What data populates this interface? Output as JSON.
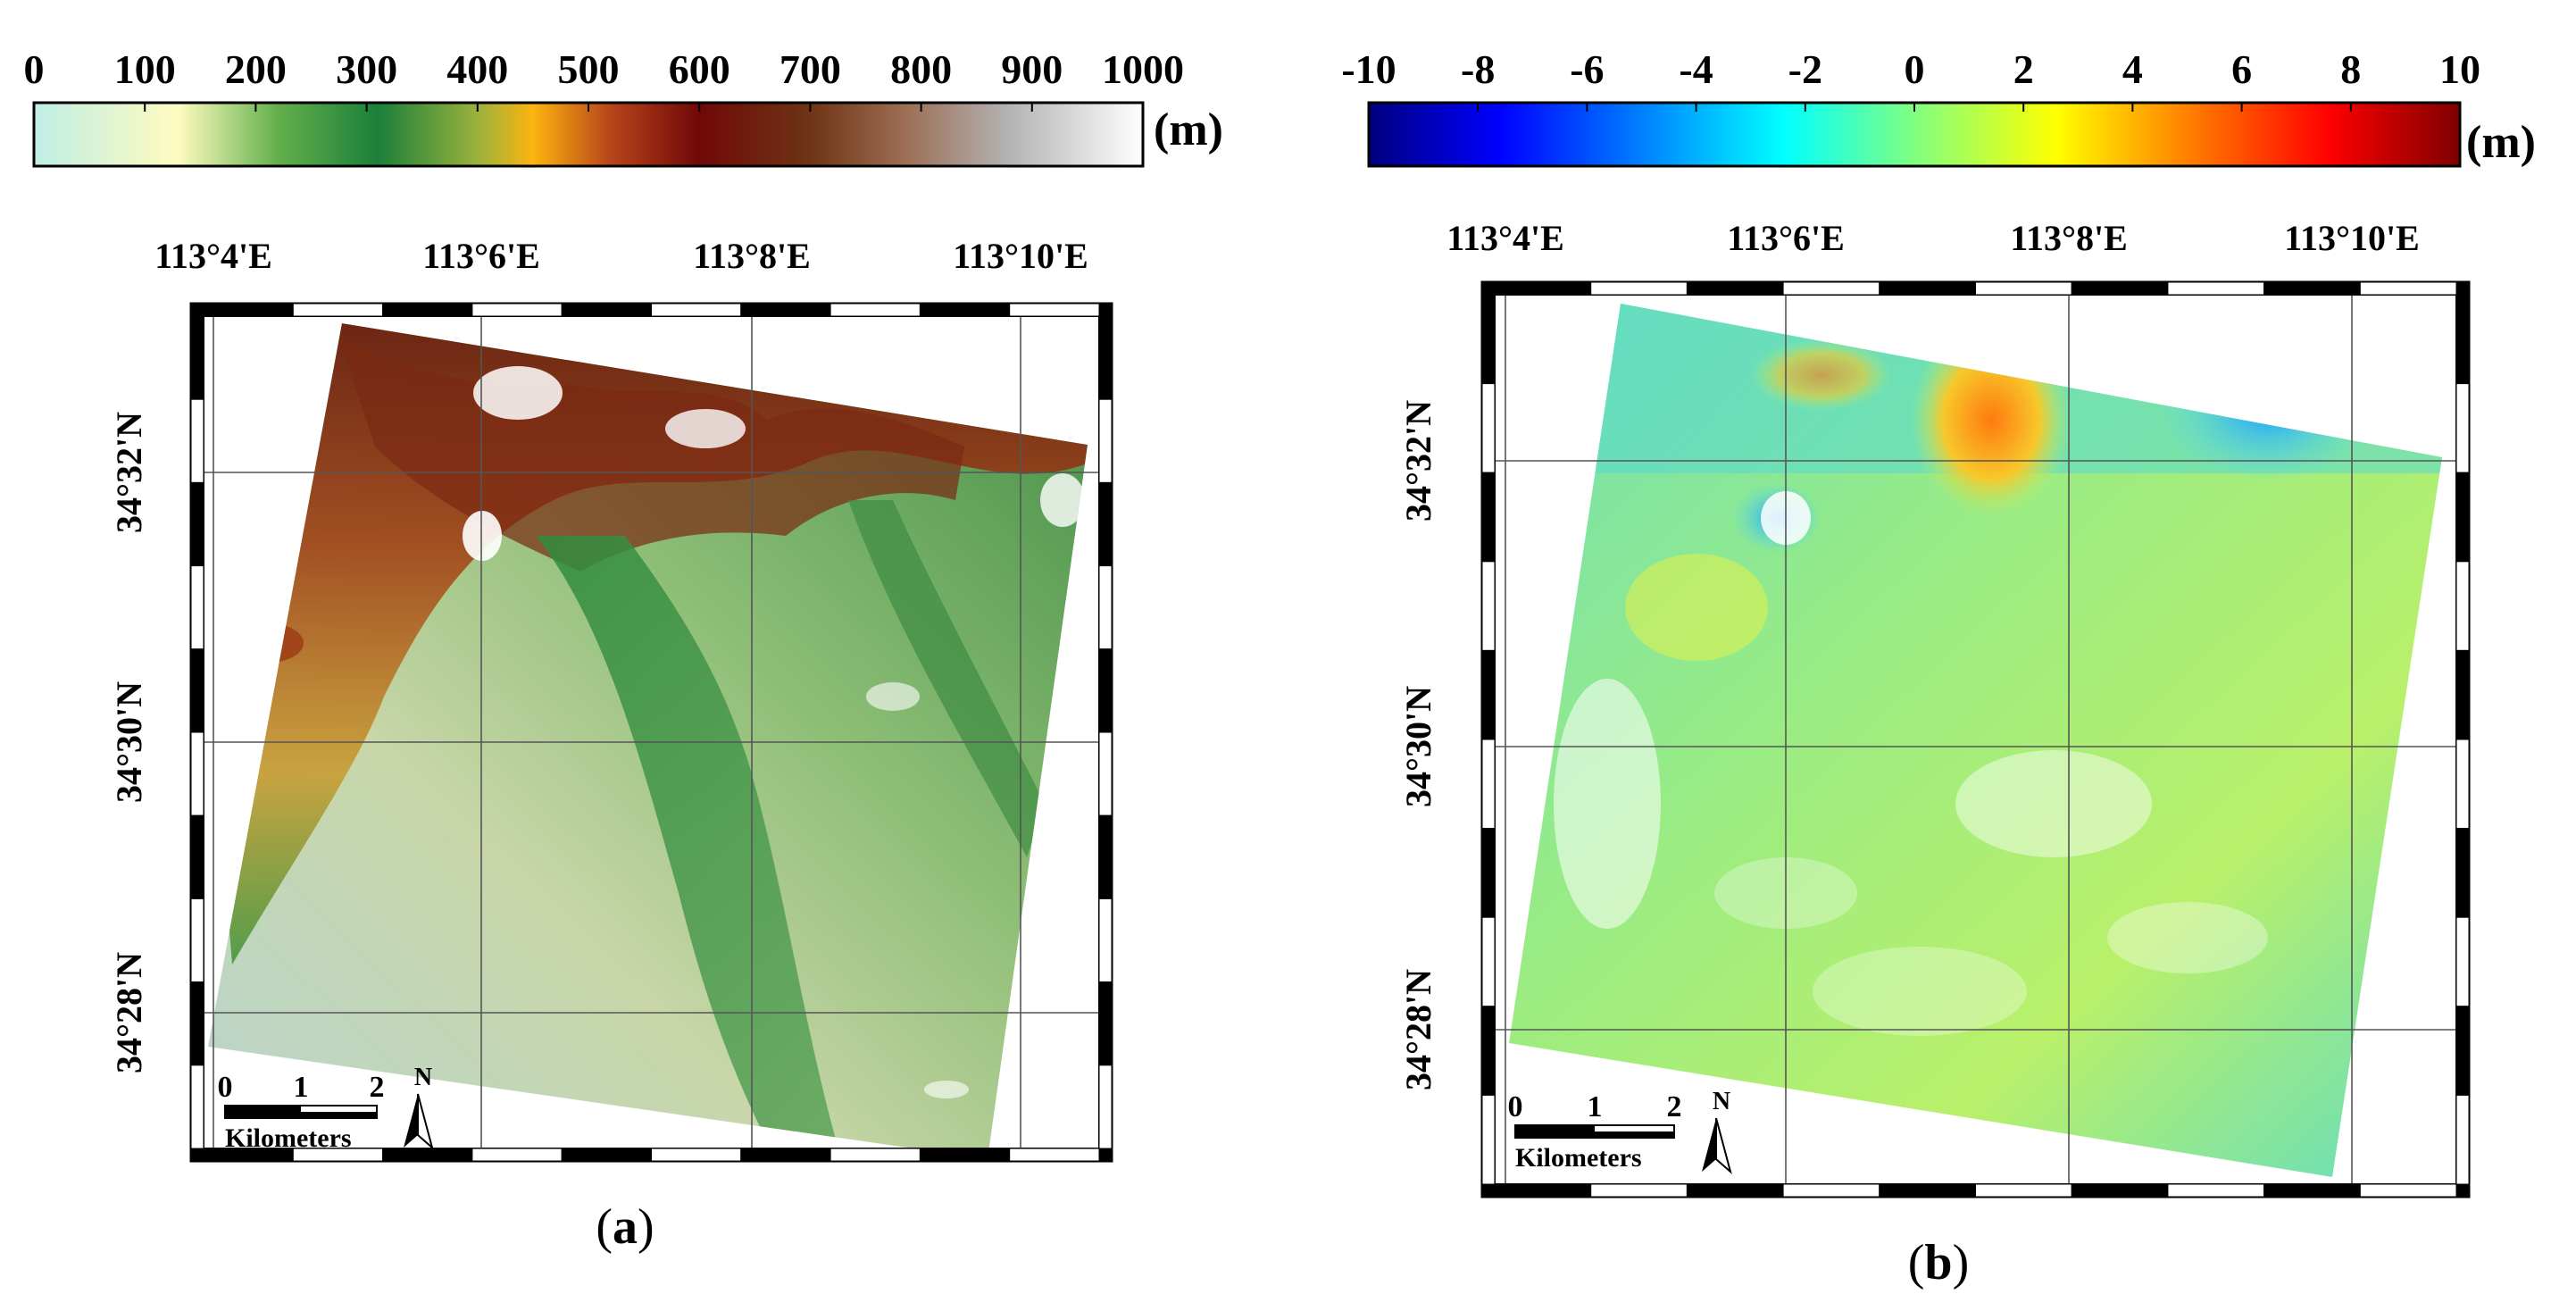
{
  "panels": [
    {
      "id": "a",
      "caption_open": "(",
      "caption_letter": "a",
      "caption_close": ")",
      "colorbar": {
        "unit": "(m)",
        "ticks": [
          "0",
          "100",
          "200",
          "300",
          "400",
          "500",
          "600",
          "700",
          "800",
          "900",
          "1000"
        ],
        "stops": [
          {
            "offset": 0.0,
            "color": "#bfeee6"
          },
          {
            "offset": 0.13,
            "color": "#fffbc0"
          },
          {
            "offset": 0.22,
            "color": "#63b04b"
          },
          {
            "offset": 0.31,
            "color": "#1b7f3a"
          },
          {
            "offset": 0.4,
            "color": "#9ab23d"
          },
          {
            "offset": 0.45,
            "color": "#fcb410"
          },
          {
            "offset": 0.52,
            "color": "#b8441a"
          },
          {
            "offset": 0.6,
            "color": "#700808"
          },
          {
            "offset": 0.7,
            "color": "#6e3415"
          },
          {
            "offset": 0.78,
            "color": "#9b6a50"
          },
          {
            "offset": 0.88,
            "color": "#b4b4b4"
          },
          {
            "offset": 1.0,
            "color": "#ffffff"
          }
        ]
      },
      "lon_labels": [
        "113°4'E",
        "113°6'E",
        "113°8'E",
        "113°10'E"
      ],
      "lat_labels": [
        "34°32'N",
        "34°30'N",
        "34°28'N"
      ],
      "scale_bar": {
        "ticks": [
          "0",
          "1",
          "2"
        ],
        "label": "Kilometers"
      },
      "north_label": "N"
    },
    {
      "id": "b",
      "caption_open": "(",
      "caption_letter": "b",
      "caption_close": ")",
      "colorbar": {
        "unit": "(m)",
        "ticks": [
          "-10",
          "-8",
          "-6",
          "-4",
          "-2",
          "0",
          "2",
          "4",
          "6",
          "8",
          "10"
        ],
        "stops": [
          {
            "offset": 0.0,
            "color": "#00007f"
          },
          {
            "offset": 0.12,
            "color": "#0000ff"
          },
          {
            "offset": 0.25,
            "color": "#0080ff"
          },
          {
            "offset": 0.38,
            "color": "#00ffff"
          },
          {
            "offset": 0.5,
            "color": "#80ff80"
          },
          {
            "offset": 0.63,
            "color": "#ffff00"
          },
          {
            "offset": 0.75,
            "color": "#ff8000"
          },
          {
            "offset": 0.88,
            "color": "#ff0000"
          },
          {
            "offset": 1.0,
            "color": "#7f0000"
          }
        ]
      },
      "lon_labels": [
        "113°4'E",
        "113°6'E",
        "113°8'E",
        "113°10'E"
      ],
      "lat_labels": [
        "34°32'N",
        "34°30'N",
        "34°28'N"
      ],
      "scale_bar": {
        "ticks": [
          "0",
          "1",
          "2"
        ],
        "label": "Kilometers"
      },
      "north_label": "N"
    }
  ]
}
